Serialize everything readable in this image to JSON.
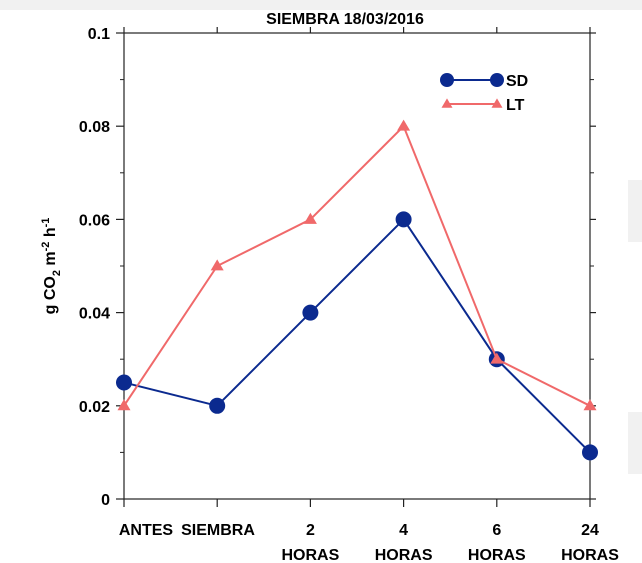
{
  "chart_data": {
    "type": "line",
    "title": "SIEMBRA 18/03/2016",
    "ylabel": "g CO2 m-2 h-1",
    "ylabel_parts": {
      "base": "g CO",
      "sub": "2",
      "mid": " m",
      "sup1": "-2",
      "mid2": " h",
      "sup2": "-1"
    },
    "xlabel": "",
    "categories": [
      [
        "ANTES",
        ""
      ],
      [
        "SIEMBRA",
        ""
      ],
      [
        "2",
        "HORAS"
      ],
      [
        "4",
        "HORAS"
      ],
      [
        "6",
        "HORAS"
      ],
      [
        "24",
        "HORAS"
      ]
    ],
    "ylim": [
      0,
      0.1
    ],
    "yticks": [
      "0",
      "0.02",
      "0.04",
      "0.06",
      "0.08",
      "0.1"
    ],
    "series": [
      {
        "name": "SD",
        "color": "#0b2a8f",
        "marker": "circle",
        "values": [
          0.025,
          0.02,
          0.04,
          0.06,
          0.03,
          0.01
        ]
      },
      {
        "name": "LT",
        "color": "#f0696a",
        "marker": "triangle",
        "values": [
          0.02,
          0.05,
          0.06,
          0.08,
          0.03,
          0.02
        ]
      }
    ],
    "legend_position": "top-right",
    "grid": false
  }
}
